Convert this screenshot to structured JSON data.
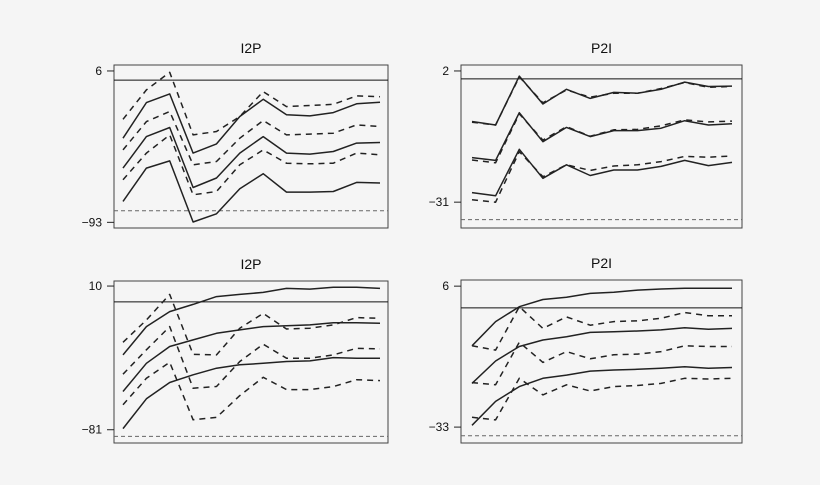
{
  "chart_data": [
    {
      "type": "line",
      "title": "I2P",
      "x": [
        1,
        2,
        3,
        4,
        5,
        6,
        7,
        8,
        9,
        10,
        11,
        12
      ],
      "yticks": [
        6,
        -93
      ],
      "ylim": [
        -96.7,
        9.9
      ],
      "reference_lines": {
        "solid": 0,
        "dashed": -85.4
      },
      "series": [
        {
          "style": "solid",
          "values": [
            -38,
            -14.7,
            -9,
            -47.7,
            -41.7,
            -23.8,
            -12.5,
            -22.7,
            -23.4,
            -21.2,
            -15.5,
            -14.5
          ]
        },
        {
          "style": "solid",
          "values": [
            -57.5,
            -36.9,
            -31,
            -70.2,
            -64,
            -47.7,
            -36.9,
            -47.7,
            -48.4,
            -46.7,
            -41.2,
            -40.8
          ]
        },
        {
          "style": "solid",
          "values": [
            -79.3,
            -57.5,
            -52.8,
            -92.8,
            -87.4,
            -71,
            -61.2,
            -73.2,
            -73.2,
            -72.8,
            -66.9,
            -67.3
          ]
        },
        {
          "style": "dashed",
          "values": [
            -25.6,
            -6.4,
            5.1,
            -35.8,
            -33.6,
            -23.8,
            -7.5,
            -17.3,
            -16.6,
            -15.8,
            -10.3,
            -10.8
          ]
        },
        {
          "style": "dashed",
          "values": [
            -45.6,
            -27.1,
            -20.5,
            -55.4,
            -53.2,
            -38,
            -26.4,
            -35.8,
            -35.3,
            -34.7,
            -29.3,
            -30.3
          ]
        },
        {
          "style": "dashed",
          "values": [
            -65.2,
            -47.7,
            -35.8,
            -75,
            -72.8,
            -55.4,
            -45.6,
            -54.3,
            -54.7,
            -54.3,
            -47.7,
            -48.8
          ]
        }
      ]
    },
    {
      "type": "line",
      "title": "P2I",
      "x": [
        1,
        2,
        3,
        4,
        5,
        6,
        7,
        8,
        9,
        10,
        11,
        12
      ],
      "yticks": [
        2,
        -31
      ],
      "ylim": [
        -37.5,
        3.5
      ],
      "reference_lines": {
        "solid": 0,
        "dashed": -35.4
      },
      "series": [
        {
          "style": "solid",
          "values": [
            -10.7,
            -11.6,
            0.7,
            -6.3,
            -2.6,
            -4.9,
            -3.4,
            -3.6,
            -2.6,
            -0.8,
            -1.9,
            -1.8
          ]
        },
        {
          "style": "solid",
          "values": [
            -19.8,
            -20.5,
            -8.5,
            -15.8,
            -12.2,
            -14.5,
            -13,
            -13,
            -12.4,
            -10.5,
            -11.6,
            -11.3
          ]
        },
        {
          "style": "solid",
          "values": [
            -28.6,
            -29.4,
            -17.7,
            -25,
            -21.6,
            -24.3,
            -22.9,
            -22.9,
            -22,
            -20.5,
            -21.8,
            -21
          ]
        },
        {
          "style": "dashed",
          "values": [
            -10.9,
            -11.6,
            0.5,
            -6,
            -2.8,
            -4.6,
            -3.6,
            -3.6,
            -2.4,
            -0.9,
            -2.1,
            -1.9
          ]
        },
        {
          "style": "dashed",
          "values": [
            -20.4,
            -21.1,
            -8.8,
            -15.4,
            -12,
            -14.4,
            -12.8,
            -12.7,
            -11.8,
            -10.3,
            -10.8,
            -10.6
          ]
        },
        {
          "style": "dashed",
          "values": [
            -30.4,
            -31,
            -18.3,
            -24.6,
            -21.6,
            -23,
            -21.9,
            -21.6,
            -20.8,
            -19.5,
            -19.7,
            -19.4
          ]
        }
      ]
    },
    {
      "type": "line",
      "title": "I2P",
      "x": [
        1,
        2,
        3,
        4,
        5,
        6,
        7,
        8,
        9,
        10,
        11,
        12
      ],
      "yticks": [
        10,
        -81
      ],
      "ylim": [
        -89.4,
        13.2
      ],
      "reference_lines": {
        "solid": 0,
        "dashed": -85.2
      },
      "series": [
        {
          "style": "solid",
          "values": [
            -33.6,
            -15.7,
            -6.2,
            -1.6,
            3.3,
            4.7,
            6,
            8.5,
            8.1,
            9.2,
            9.2,
            8.5
          ]
        },
        {
          "style": "solid",
          "values": [
            -56.8,
            -38.9,
            -28.3,
            -24.1,
            -19.9,
            -17.8,
            -15.7,
            -15.1,
            -14.6,
            -13.2,
            -13.2,
            -13.6
          ]
        },
        {
          "style": "solid",
          "values": [
            -80.3,
            -61.4,
            -51.1,
            -46.2,
            -42,
            -39.9,
            -38.9,
            -37.8,
            -37.4,
            -35.3,
            -35.7,
            -35.7
          ]
        },
        {
          "style": "dashed",
          "values": [
            -25.6,
            -11.5,
            4.7,
            -33.2,
            -33.6,
            -16.7,
            -7.3,
            -17.2,
            -16.7,
            -14.6,
            -10,
            -10.4
          ]
        },
        {
          "style": "dashed",
          "values": [
            -45.8,
            -30.4,
            -15.7,
            -54.7,
            -53.6,
            -37.8,
            -26.8,
            -35.7,
            -35.7,
            -33.6,
            -29.4,
            -29.8
          ]
        },
        {
          "style": "dashed",
          "values": [
            -65.2,
            -48.4,
            -38.3,
            -74.7,
            -73.2,
            -59.4,
            -47.8,
            -55.6,
            -55.6,
            -53.7,
            -49.3,
            -49.9
          ]
        }
      ]
    },
    {
      "type": "line",
      "title": "P2I",
      "x": [
        1,
        2,
        3,
        4,
        5,
        6,
        7,
        8,
        9,
        10,
        11,
        12
      ],
      "yticks": [
        6,
        -33
      ],
      "ylim": [
        -37.4,
        7.7
      ],
      "reference_lines": {
        "solid": 0,
        "dashed": -35.4
      },
      "series": [
        {
          "style": "solid",
          "values": [
            -10.5,
            -3.8,
            0.3,
            2.3,
            2.9,
            4,
            4.3,
            4.9,
            5.2,
            5.4,
            5.4,
            5.4
          ]
        },
        {
          "style": "solid",
          "values": [
            -20.9,
            -14.7,
            -10.7,
            -8.9,
            -8,
            -6.8,
            -6.6,
            -6.4,
            -6.1,
            -5.5,
            -5.9,
            -5.7
          ]
        },
        {
          "style": "solid",
          "values": [
            -32.5,
            -25.9,
            -21.8,
            -19.5,
            -18.6,
            -17.5,
            -17.2,
            -17,
            -16.7,
            -16.3,
            -16.7,
            -16.5
          ]
        },
        {
          "style": "dashed",
          "values": [
            -10.5,
            -11.7,
            0.3,
            -5.7,
            -2.5,
            -4.8,
            -3.8,
            -3.6,
            -2.9,
            -1.3,
            -2.2,
            -2.2
          ]
        },
        {
          "style": "dashed",
          "values": [
            -20.7,
            -21.3,
            -9.5,
            -15.1,
            -12.1,
            -14.1,
            -13,
            -12.8,
            -12.1,
            -10.5,
            -10.7,
            -10.7
          ]
        },
        {
          "style": "dashed",
          "values": [
            -30.3,
            -31,
            -19.5,
            -24.1,
            -21.3,
            -23,
            -21.8,
            -21.5,
            -20.9,
            -19.5,
            -19.7,
            -19.5
          ]
        }
      ]
    }
  ]
}
